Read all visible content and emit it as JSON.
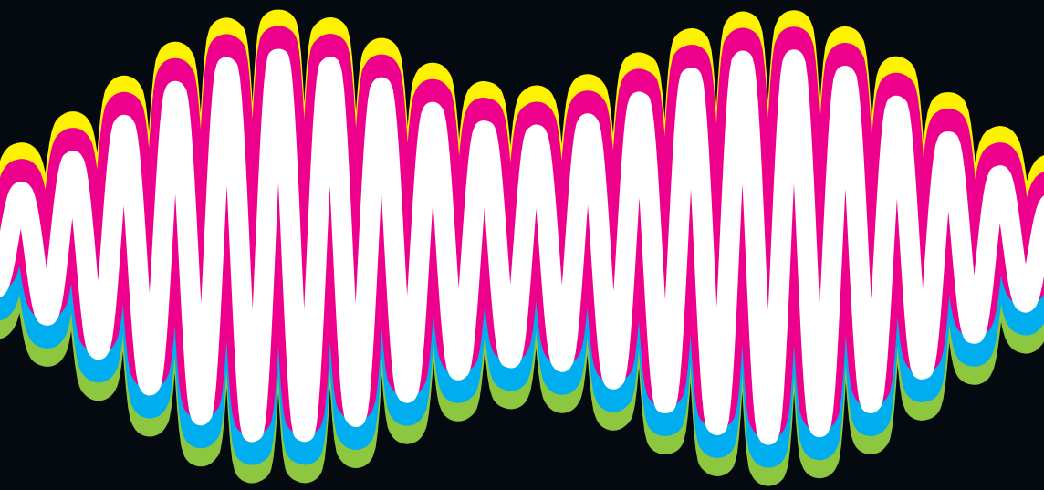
{
  "artwork": {
    "background_color": "#050a10",
    "layers": [
      {
        "name": "green-band",
        "color": "#8dc63f"
      },
      {
        "name": "cyan-band",
        "color": "#00aeef"
      },
      {
        "name": "yellow-band",
        "color": "#fff200"
      },
      {
        "name": "magenta-band",
        "color": "#ec008c"
      },
      {
        "name": "white-band",
        "color": "#ffffff"
      }
    ]
  }
}
